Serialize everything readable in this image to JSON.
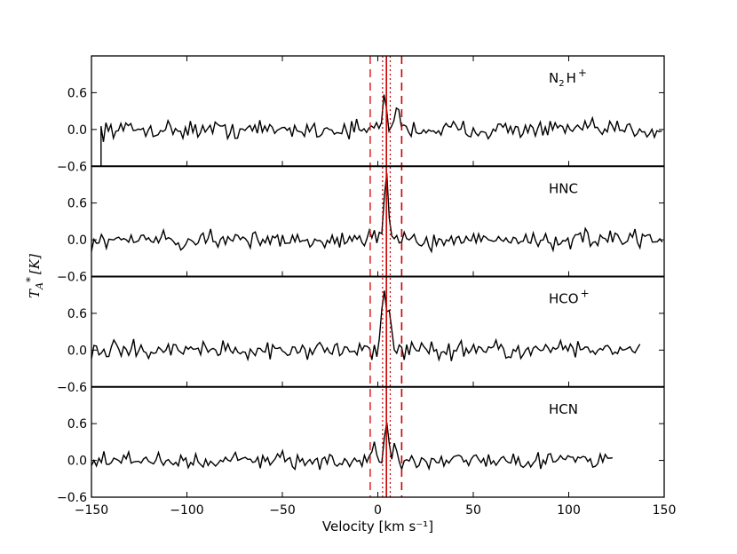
{
  "chart_data": {
    "type": "line",
    "xlabel": "Velocity [km s⁻¹]",
    "ylabel": "T_A* [K]",
    "ylabel_parts": {
      "T": "T",
      "A": "A",
      "star": "*",
      "unit": "[K]"
    },
    "xlim": [
      -150,
      150
    ],
    "xticks": [
      -150,
      -100,
      -50,
      0,
      50,
      100,
      150
    ],
    "xtick_labels": [
      "−150",
      "−100",
      "−50",
      "0",
      "50",
      "100",
      "150"
    ],
    "ylim": [
      -0.6,
      1.2
    ],
    "yticks": [
      -0.6,
      0.0,
      0.6
    ],
    "ytick_labels": [
      "−0.6",
      "0.0",
      "0.6"
    ],
    "grid": false,
    "vlines": [
      {
        "x": -4,
        "style": "dashed",
        "color": "#e03030"
      },
      {
        "x": 12.5,
        "style": "dashed",
        "color": "#cc0000"
      },
      {
        "x": 2.5,
        "style": "dotted",
        "color": "#cc0000"
      },
      {
        "x": 6.5,
        "style": "dotted",
        "color": "#cc0000"
      },
      {
        "x": 4.5,
        "style": "solid",
        "color": "#cc0000"
      }
    ],
    "panels": [
      {
        "label": "N₂H⁺",
        "label_base": "N",
        "label_sub": "2",
        "label_rest": "H",
        "label_sup": "+",
        "series": {
          "x_start": -145,
          "x_end": 150,
          "peaks": [
            [
              3.5,
              0.5
            ],
            [
              10,
              0.45
            ]
          ],
          "noise": 0.09
        }
      },
      {
        "label": "HNC",
        "label_base": "HNC",
        "label_sub": "",
        "label_rest": "",
        "label_sup": "",
        "series": {
          "x_start": -150,
          "x_end": 150,
          "peaks": [
            [
              4.5,
              1.15
            ]
          ],
          "noise": 0.09
        }
      },
      {
        "label": "HCO⁺",
        "label_base": "HCO",
        "label_sub": "",
        "label_rest": "",
        "label_sup": "+",
        "series": {
          "x_start": -150,
          "x_end": 138,
          "peaks": [
            [
              3,
              1.0
            ],
            [
              6,
              0.6
            ]
          ],
          "noise": 0.09
        }
      },
      {
        "label": "HCN",
        "label_base": "HCN",
        "label_sub": "",
        "label_rest": "",
        "label_sup": "",
        "series": {
          "x_start": -150,
          "x_end": 123,
          "peaks": [
            [
              -2,
              0.3
            ],
            [
              4.5,
              0.6
            ],
            [
              9,
              0.25
            ]
          ],
          "noise": 0.08
        }
      }
    ]
  }
}
